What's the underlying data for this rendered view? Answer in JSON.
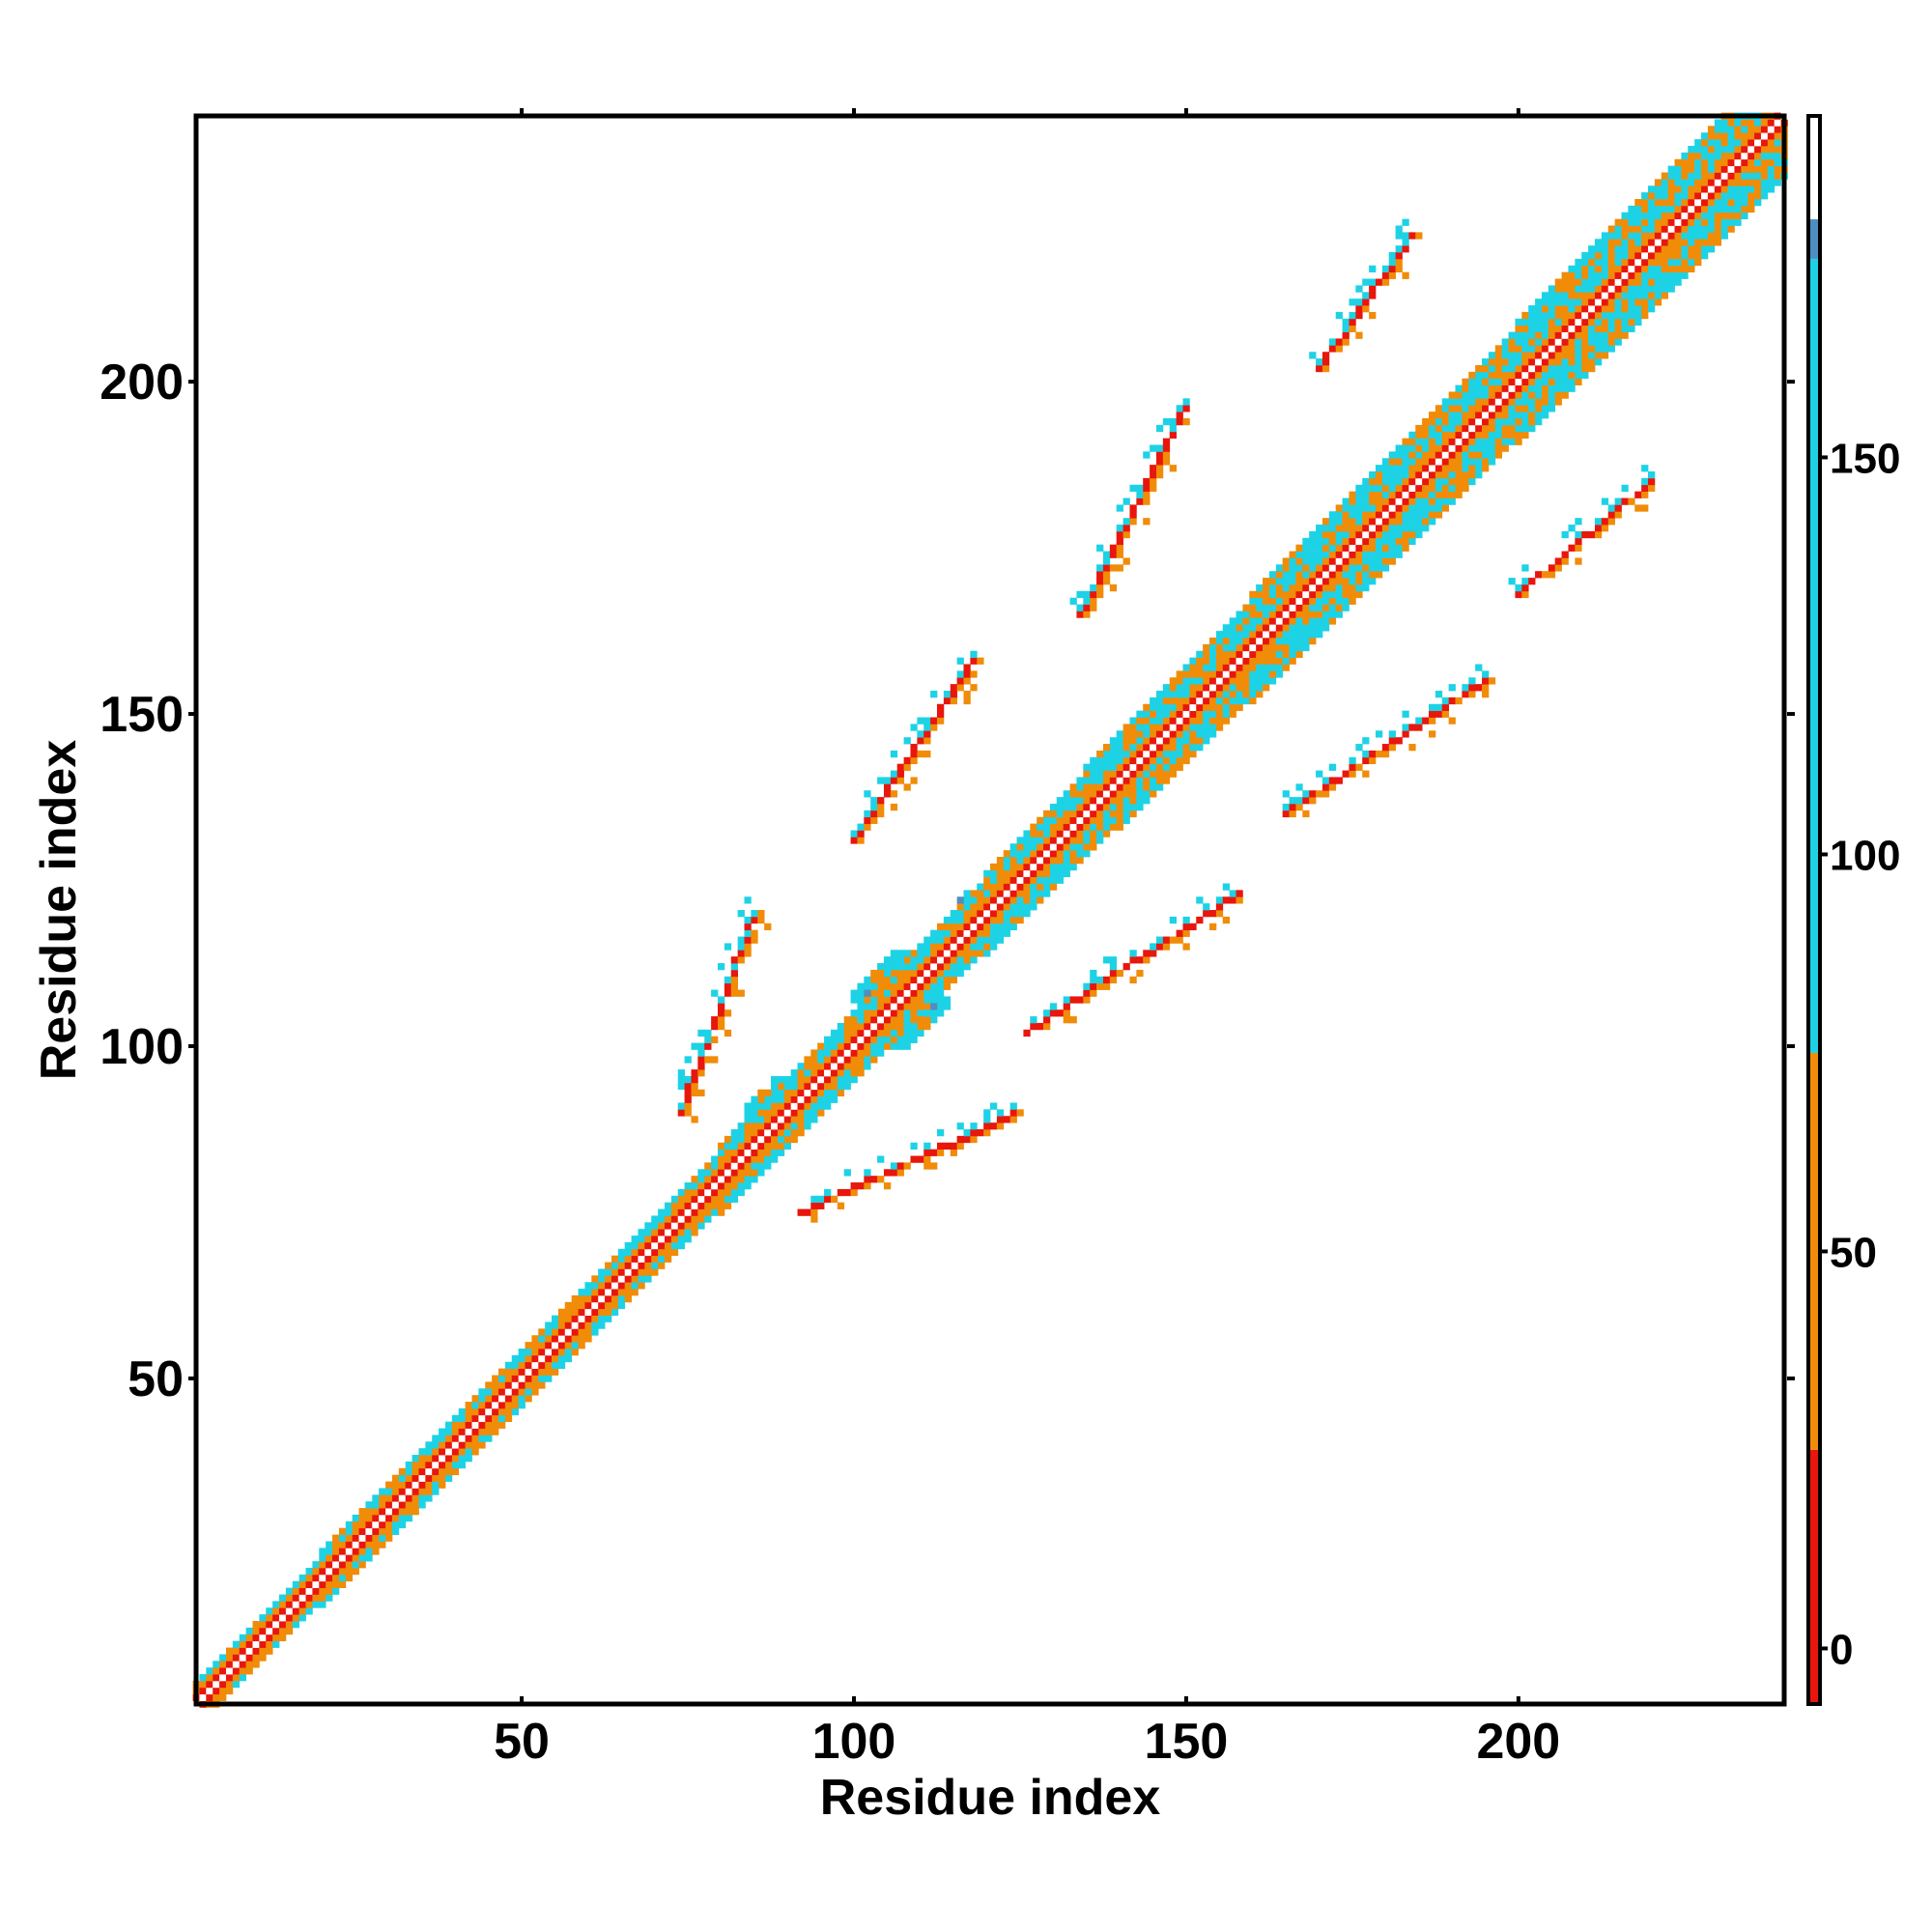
{
  "chart_data": {
    "type": "heatmap",
    "title": "",
    "xlabel": "Residue index",
    "ylabel": "Residue index",
    "xlim": [
      1,
      240
    ],
    "ylim": [
      1,
      240
    ],
    "x_ticks": [
      "50",
      "100",
      "150",
      "200"
    ],
    "x_tick_values": [
      50,
      100,
      150,
      200
    ],
    "y_ticks": [
      "50",
      "100",
      "150",
      "200"
    ],
    "y_tick_values": [
      50,
      100,
      150,
      200
    ],
    "colorbar": {
      "ticks": [
        "0",
        "50",
        "100",
        "150"
      ],
      "tick_values": [
        0,
        50,
        100,
        150
      ],
      "range": [
        -7,
        193
      ],
      "bands": [
        {
          "from": -7,
          "to": 25,
          "color": "#e8160c"
        },
        {
          "from": 25,
          "to": 75,
          "color": "#f08c08"
        },
        {
          "from": 75,
          "to": 175,
          "color": "#1ed2e6"
        },
        {
          "from": 175,
          "to": 180,
          "color": "#4f8fc0"
        },
        {
          "from": 180,
          "to": 193,
          "color": "#ffffff"
        }
      ]
    },
    "diagonal": {
      "start": 1,
      "end": 240,
      "band_half_width": [
        3,
        4,
        4,
        4,
        5,
        5,
        6,
        7,
        8,
        8,
        9,
        9
      ]
    },
    "contact_blobs": [
      {
        "x": 89,
        "y": 90,
        "w": 5,
        "h": 5
      },
      {
        "x": 107,
        "y": 107,
        "w": 7,
        "h": 7
      },
      {
        "x": 121,
        "y": 121,
        "w": 5,
        "h": 5
      },
      {
        "x": 141,
        "y": 141,
        "w": 6,
        "h": 6
      },
      {
        "x": 150,
        "y": 150,
        "w": 6,
        "h": 6
      },
      {
        "x": 174,
        "y": 174,
        "w": 6,
        "h": 6
      },
      {
        "x": 184,
        "y": 184,
        "w": 5,
        "h": 5
      },
      {
        "x": 207,
        "y": 207,
        "w": 6,
        "h": 6
      },
      {
        "x": 232,
        "y": 232,
        "w": 4,
        "h": 4
      }
    ],
    "off_diagonal_strands": [
      {
        "x1": 74,
        "y1": 90,
        "x2": 85,
        "y2": 120
      },
      {
        "x1": 100,
        "y1": 131,
        "x2": 118,
        "y2": 158
      },
      {
        "x1": 134,
        "y1": 165,
        "x2": 150,
        "y2": 196
      },
      {
        "x1": 170,
        "y1": 202,
        "x2": 184,
        "y2": 222
      },
      {
        "x1": 92,
        "y1": 75,
        "x2": 125,
        "y2": 90
      },
      {
        "x1": 126,
        "y1": 102,
        "x2": 158,
        "y2": 123
      },
      {
        "x1": 165,
        "y1": 135,
        "x2": 195,
        "y2": 155
      },
      {
        "x1": 200,
        "y1": 168,
        "x2": 220,
        "y2": 185
      }
    ]
  }
}
